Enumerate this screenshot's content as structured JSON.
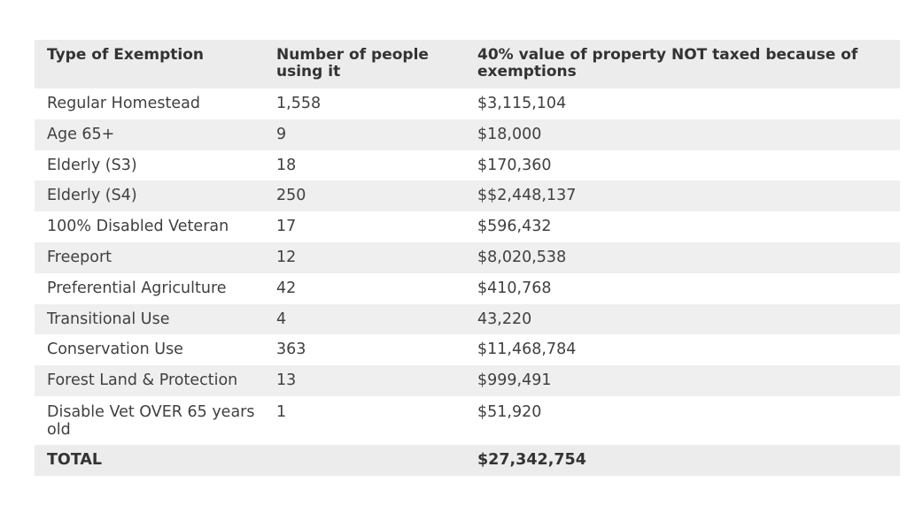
{
  "table": {
    "headers": [
      "Type of Exemption",
      "Number of people using it",
      "40% value of property NOT taxed because of exemptions"
    ],
    "rows": [
      {
        "type": "Regular Homestead",
        "count": "1,558",
        "value": "$3,115,104"
      },
      {
        "type": "Age 65+",
        "count": "9",
        "value": "$18,000"
      },
      {
        "type": "Elderly (S3)",
        "count": "18",
        "value": "$170,360"
      },
      {
        "type": "Elderly (S4)",
        "count": "250",
        "value": "$$2,448,137"
      },
      {
        "type": "100% Disabled Veteran",
        "count": "17",
        "value": "$596,432"
      },
      {
        "type": "Freeport",
        "count": "12",
        "value": "$8,020,538"
      },
      {
        "type": "Preferential Agriculture",
        "count": "42",
        "value": "$410,768"
      },
      {
        "type": "Transitional Use",
        "count": "4",
        "value": "43,220"
      },
      {
        "type": "Conservation Use",
        "count": "363",
        "value": "$11,468,784"
      },
      {
        "type": "Forest Land & Protection",
        "count": "13",
        "value": "$999,491"
      },
      {
        "type": "Disable Vet OVER 65 years old",
        "count": "1",
        "value": "$51,920"
      }
    ],
    "total": {
      "label": "TOTAL",
      "count": "",
      "value": "$27,342,754"
    }
  }
}
